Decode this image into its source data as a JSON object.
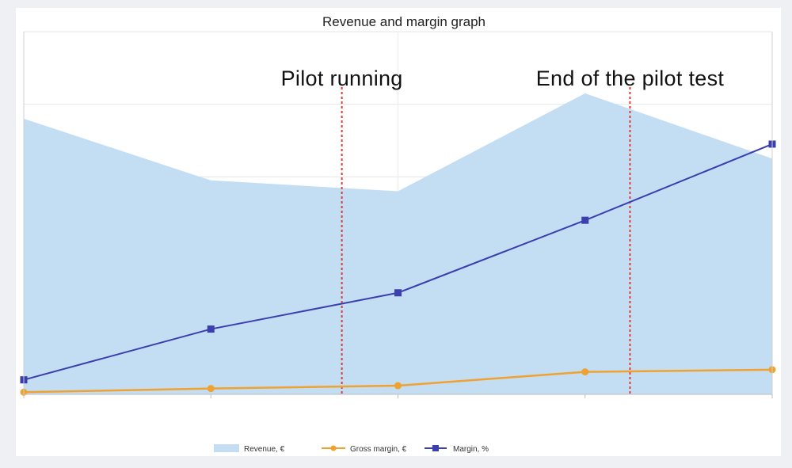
{
  "chart_data": {
    "type": "area",
    "title": "Revenue and margin graph",
    "x": [
      0,
      1,
      2,
      3,
      4
    ],
    "series": [
      {
        "name": "Revenue, €",
        "kind": "area",
        "axis": "left",
        "color": "#c3ddf3",
        "values": [
          380,
          295,
          280,
          415,
          325
        ]
      },
      {
        "name": "Gross margin, €",
        "kind": "line",
        "marker": "circle",
        "axis": "left",
        "color": "#f0a231",
        "values": [
          3,
          8,
          12,
          31,
          34
        ]
      },
      {
        "name": "Margin, %",
        "kind": "line",
        "marker": "square",
        "axis": "right",
        "color": "#3a3fad",
        "values": [
          4,
          18,
          28,
          48,
          69
        ]
      }
    ],
    "left_axis": {
      "ylim": [
        0,
        500
      ]
    },
    "right_axis": {
      "ylim": [
        0,
        100
      ]
    },
    "annotations": [
      {
        "label": "Pilot running",
        "x": 1.7
      },
      {
        "label": "End of the pilot test",
        "x": 3.24
      }
    ],
    "grid": true,
    "legend_position": "bottom",
    "annotation_line_color": "#e03a3a"
  }
}
